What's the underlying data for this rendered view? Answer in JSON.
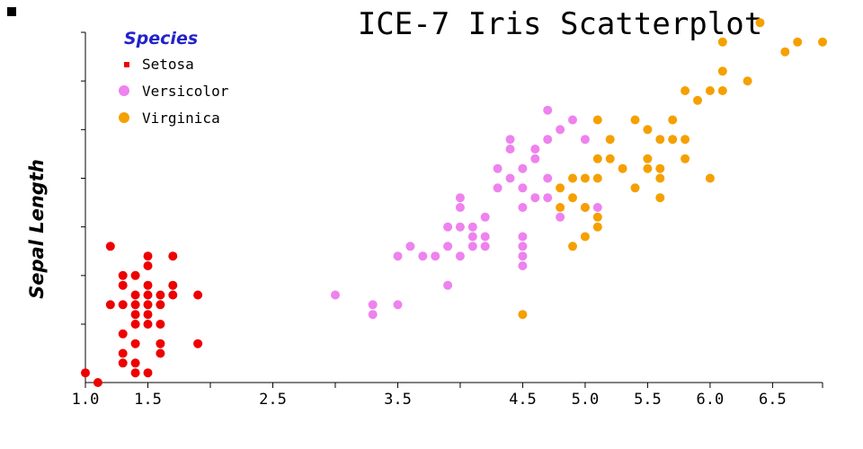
{
  "chart_data": {
    "type": "scatter",
    "title": "ICE-7 Iris Scatterplot",
    "xlabel": "",
    "ylabel": "Sepal Length",
    "xlim": [
      1.0,
      6.9
    ],
    "ylim": [
      4.2,
      7.8
    ],
    "x_ticks": [
      1.0,
      1.5,
      2.0,
      2.5,
      3.0,
      3.5,
      4.0,
      4.5,
      5.0,
      5.5,
      6.0,
      6.5,
      6.9
    ],
    "x_tick_labels": [
      "1.0",
      "1.5",
      "",
      "2.5",
      "",
      "3.5",
      "",
      "4.5",
      "5.0",
      "5.5",
      "6.0",
      "6.5",
      ""
    ],
    "y_ticks": [
      4.3,
      4.8,
      5.3,
      5.8,
      6.3,
      6.8,
      7.3,
      7.8
    ],
    "y_tick_labels": [
      "",
      "",
      "",
      "",
      "",
      "",
      "",
      ""
    ],
    "grid": false,
    "legend": {
      "title": "Species",
      "title_color": "#2222cc",
      "placement": "top-left"
    },
    "series": [
      {
        "name": "Setosa",
        "color": "#ee0000",
        "marker": "square-small",
        "points": [
          [
            1.0,
            4.3
          ],
          [
            1.1,
            4.2
          ],
          [
            1.2,
            5.6
          ],
          [
            1.3,
            4.4
          ],
          [
            1.3,
            4.5
          ],
          [
            1.3,
            4.7
          ],
          [
            1.3,
            5.0
          ],
          [
            1.3,
            5.2
          ],
          [
            1.3,
            5.3
          ],
          [
            1.2,
            5.0
          ],
          [
            1.4,
            4.3
          ],
          [
            1.4,
            4.4
          ],
          [
            1.4,
            4.6
          ],
          [
            1.4,
            4.8
          ],
          [
            1.4,
            4.9
          ],
          [
            1.4,
            5.0
          ],
          [
            1.4,
            5.1
          ],
          [
            1.4,
            5.3
          ],
          [
            1.5,
            4.3
          ],
          [
            1.5,
            4.8
          ],
          [
            1.5,
            4.9
          ],
          [
            1.5,
            5.0
          ],
          [
            1.5,
            5.1
          ],
          [
            1.5,
            5.2
          ],
          [
            1.5,
            5.4
          ],
          [
            1.5,
            5.5
          ],
          [
            1.6,
            4.5
          ],
          [
            1.6,
            4.6
          ],
          [
            1.6,
            4.8
          ],
          [
            1.6,
            5.0
          ],
          [
            1.6,
            5.1
          ],
          [
            1.7,
            5.1
          ],
          [
            1.7,
            5.2
          ],
          [
            1.7,
            5.5
          ],
          [
            1.9,
            4.6
          ],
          [
            1.9,
            5.1
          ]
        ]
      },
      {
        "name": "Versicolor",
        "color": "#ee82ee",
        "marker": "circle",
        "points": [
          [
            3.0,
            5.1
          ],
          [
            3.3,
            4.9
          ],
          [
            3.3,
            5.0
          ],
          [
            3.5,
            5.0
          ],
          [
            3.5,
            5.5
          ],
          [
            3.6,
            5.6
          ],
          [
            3.7,
            5.5
          ],
          [
            3.8,
            5.5
          ],
          [
            3.9,
            5.2
          ],
          [
            3.9,
            5.6
          ],
          [
            3.9,
            5.8
          ],
          [
            4.0,
            5.5
          ],
          [
            4.0,
            5.8
          ],
          [
            4.0,
            6.0
          ],
          [
            4.0,
            6.1
          ],
          [
            4.1,
            5.6
          ],
          [
            4.1,
            5.7
          ],
          [
            4.1,
            5.8
          ],
          [
            4.2,
            5.6
          ],
          [
            4.2,
            5.7
          ],
          [
            4.2,
            5.9
          ],
          [
            4.3,
            6.2
          ],
          [
            4.3,
            6.4
          ],
          [
            4.4,
            6.3
          ],
          [
            4.4,
            6.6
          ],
          [
            4.4,
            6.7
          ],
          [
            4.5,
            5.4
          ],
          [
            4.5,
            5.6
          ],
          [
            4.5,
            5.7
          ],
          [
            4.5,
            6.0
          ],
          [
            4.5,
            6.2
          ],
          [
            4.5,
            6.4
          ],
          [
            4.5,
            5.5
          ],
          [
            4.6,
            6.5
          ],
          [
            4.6,
            6.6
          ],
          [
            4.6,
            6.1
          ],
          [
            4.7,
            6.1
          ],
          [
            4.7,
            6.3
          ],
          [
            4.7,
            6.7
          ],
          [
            4.7,
            7.0
          ],
          [
            4.8,
            5.9
          ],
          [
            4.8,
            6.8
          ],
          [
            4.9,
            6.9
          ],
          [
            5.0,
            6.0
          ],
          [
            5.0,
            6.7
          ],
          [
            5.1,
            6.0
          ]
        ]
      },
      {
        "name": "Virginica",
        "color": "#f5a000",
        "marker": "circle",
        "points": [
          [
            4.5,
            4.9
          ],
          [
            4.8,
            6.0
          ],
          [
            4.8,
            6.2
          ],
          [
            4.9,
            5.6
          ],
          [
            4.9,
            6.1
          ],
          [
            4.9,
            6.3
          ],
          [
            5.0,
            5.7
          ],
          [
            5.0,
            6.0
          ],
          [
            5.0,
            6.3
          ],
          [
            5.1,
            5.8
          ],
          [
            5.1,
            5.9
          ],
          [
            5.1,
            6.3
          ],
          [
            5.1,
            6.5
          ],
          [
            5.1,
            6.9
          ],
          [
            5.2,
            6.5
          ],
          [
            5.2,
            6.7
          ],
          [
            5.3,
            6.4
          ],
          [
            5.4,
            6.2
          ],
          [
            5.4,
            6.9
          ],
          [
            5.5,
            6.4
          ],
          [
            5.5,
            6.5
          ],
          [
            5.5,
            6.8
          ],
          [
            5.6,
            6.1
          ],
          [
            5.6,
            6.3
          ],
          [
            5.6,
            6.4
          ],
          [
            5.6,
            6.7
          ],
          [
            5.7,
            6.7
          ],
          [
            5.7,
            6.9
          ],
          [
            5.8,
            6.5
          ],
          [
            5.8,
            6.7
          ],
          [
            5.8,
            7.2
          ],
          [
            5.9,
            7.1
          ],
          [
            6.0,
            6.3
          ],
          [
            6.0,
            7.2
          ],
          [
            6.1,
            7.2
          ],
          [
            6.1,
            7.4
          ],
          [
            6.1,
            7.7
          ],
          [
            6.3,
            7.3
          ],
          [
            6.4,
            7.9
          ],
          [
            6.6,
            7.6
          ],
          [
            6.7,
            7.7
          ],
          [
            6.9,
            7.7
          ]
        ]
      }
    ]
  },
  "corner_marker": {
    "color": "#000000"
  }
}
